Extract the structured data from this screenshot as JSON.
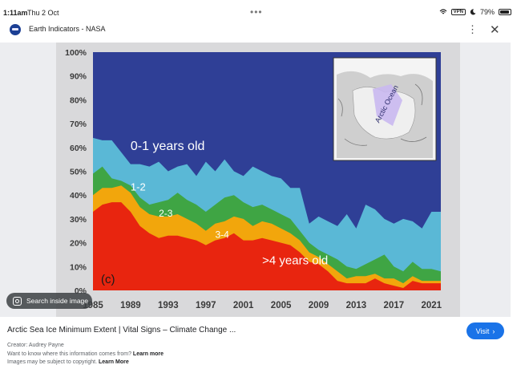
{
  "status_bar": {
    "time": "1:11am",
    "date": "Thu 2 Oct",
    "more": "•••",
    "vpn": "VPN",
    "battery": "79%"
  },
  "header": {
    "title": "Earth Indicators - NASA",
    "menu_icon": "kebab-menu-icon",
    "close_icon": "close-icon"
  },
  "lens": {
    "label": "Search inside image"
  },
  "result": {
    "caption": "Arctic Sea Ice Minimum Extent | Vital Signs – Climate Change ...",
    "visit_label": "Visit",
    "creator": "Creator: Audrey Payne",
    "info_text": "Want to know where this information comes from?",
    "info_link": "Learn more",
    "copyright_text": "Images may be subject to copyright.",
    "copyright_link": "Learn More"
  },
  "chart_data": {
    "type": "area",
    "panel_label": "(c)",
    "x_ticks": [
      "1985",
      "1989",
      "1993",
      "1997",
      "2001",
      "2005",
      "2009",
      "2013",
      "2017",
      "2021"
    ],
    "y_ticks": [
      "0%",
      "10%",
      "20%",
      "30%",
      "40%",
      "50%",
      "60%",
      "70%",
      "80%",
      "90%",
      "100%"
    ],
    "ylim": [
      0,
      100
    ],
    "x": [
      1985,
      1986,
      1987,
      1988,
      1989,
      1990,
      1991,
      1992,
      1993,
      1994,
      1995,
      1996,
      1997,
      1998,
      1999,
      2000,
      2001,
      2002,
      2003,
      2004,
      2005,
      2006,
      2007,
      2008,
      2009,
      2010,
      2011,
      2012,
      2013,
      2014,
      2015,
      2016,
      2017,
      2018,
      2019,
      2020,
      2021,
      2022
    ],
    "series": [
      {
        "name": ">4 years old",
        "color": "#e8250f",
        "label_x": 2003,
        "label_y": 11,
        "values": [
          33,
          36,
          37,
          37,
          33,
          27,
          24,
          22,
          23,
          23,
          22,
          21,
          19,
          21,
          22,
          24,
          21,
          21,
          22,
          21,
          20,
          19,
          16,
          12,
          11,
          8,
          4,
          3,
          3,
          3,
          5,
          3,
          2,
          1,
          4,
          3,
          3,
          3
        ]
      },
      {
        "name": "3-4",
        "color": "#f2a60c",
        "label_x": 1998,
        "label_y": 22,
        "values": [
          40,
          43,
          43,
          44,
          41,
          35,
          32,
          31,
          31,
          32,
          30,
          28,
          25,
          28,
          29,
          31,
          30,
          27,
          29,
          28,
          26,
          24,
          21,
          16,
          14,
          11,
          8,
          5,
          6,
          6,
          7,
          5,
          5,
          3,
          6,
          4,
          4,
          4
        ]
      },
      {
        "name": "2-3",
        "color": "#3fa544",
        "label_x": 1992,
        "label_y": 31,
        "values": [
          49,
          52,
          47,
          46,
          44,
          39,
          36,
          37,
          38,
          41,
          38,
          36,
          33,
          36,
          39,
          40,
          37,
          35,
          36,
          34,
          32,
          30,
          25,
          20,
          17,
          15,
          13,
          10,
          9,
          11,
          13,
          15,
          10,
          8,
          12,
          9,
          9,
          8
        ]
      },
      {
        "name": "1-2",
        "color": "#5ab8d6",
        "label_x": 1989,
        "label_y": 42,
        "values": [
          64,
          63,
          63,
          58,
          53,
          53,
          52,
          54,
          50,
          52,
          53,
          48,
          54,
          50,
          55,
          50,
          48,
          52,
          50,
          48,
          47,
          43,
          43,
          28,
          31,
          29,
          27,
          32,
          26,
          36,
          34,
          30,
          28,
          30,
          29,
          26,
          33,
          33
        ]
      },
      {
        "name": "0-1 years old",
        "color": "#2f3f96",
        "label_x": 1989,
        "label_y": 59,
        "values": [
          100,
          100,
          100,
          100,
          100,
          100,
          100,
          100,
          100,
          100,
          100,
          100,
          100,
          100,
          100,
          100,
          100,
          100,
          100,
          100,
          100,
          100,
          100,
          100,
          100,
          100,
          100,
          100,
          100,
          100,
          100,
          100,
          100,
          100,
          100,
          100,
          100,
          100
        ]
      }
    ],
    "inset_label": "Arctic Ocean",
    "grid": false,
    "legend": "none"
  }
}
